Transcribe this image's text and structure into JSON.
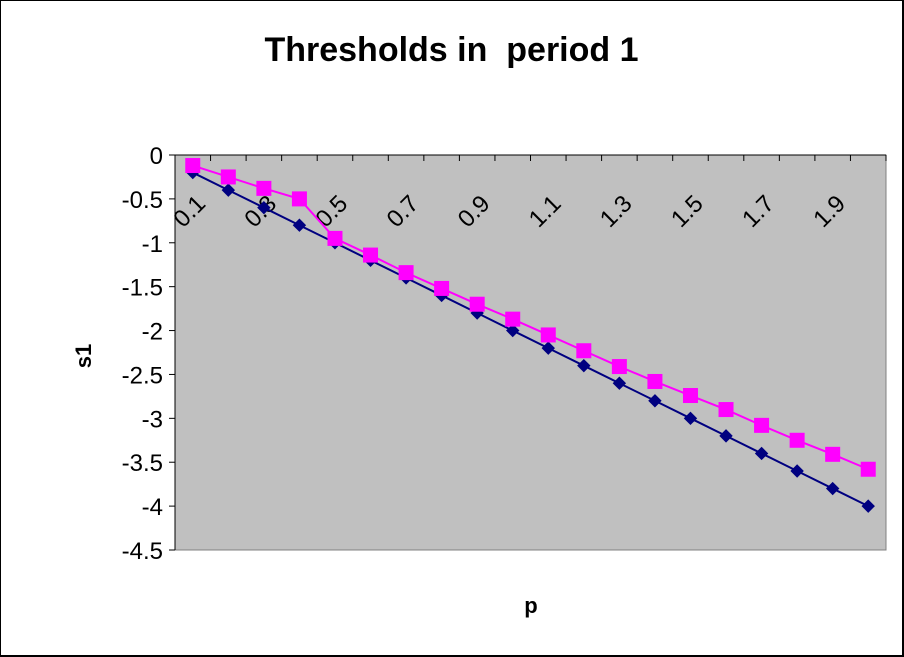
{
  "chart_data": {
    "type": "line",
    "title": "Thresholds in  period 1",
    "xlabel": "p",
    "ylabel": "s1",
    "x": [
      0.1,
      0.2,
      0.3,
      0.4,
      0.5,
      0.6,
      0.7,
      0.8,
      0.9,
      1.0,
      1.1,
      1.2,
      1.3,
      1.4,
      1.5,
      1.6,
      1.7,
      1.8,
      1.9,
      2.0
    ],
    "x_tick_labels": [
      "0.1",
      "0.3",
      "0.5",
      "0.7",
      "0.9",
      "1.1",
      "1.3",
      "1.5",
      "1.7",
      "1.9"
    ],
    "y_ticks": [
      0,
      -0.5,
      -1,
      -1.5,
      -2,
      -2.5,
      -3,
      -3.5,
      -4,
      -4.5
    ],
    "y_tick_labels": [
      "0",
      "-0.5",
      "-1",
      "-1.5",
      "-2",
      "-2.5",
      "-3",
      "-3.5",
      "-4",
      "-4.5"
    ],
    "ylim": [
      -4.5,
      0
    ],
    "grid": false,
    "legend": "none",
    "plot_background": "#c0c0c0",
    "series": [
      {
        "color": "#000080",
        "marker": "diamond",
        "values": [
          -0.2,
          -0.4,
          -0.6,
          -0.8,
          -1.0,
          -1.2,
          -1.4,
          -1.6,
          -1.8,
          -2.0,
          -2.2,
          -2.4,
          -2.6,
          -2.8,
          -3.0,
          -3.2,
          -3.4,
          -3.6,
          -3.8,
          -4.0
        ]
      },
      {
        "color": "#ff00ff",
        "marker": "square",
        "values": [
          -0.12,
          -0.25,
          -0.38,
          -0.5,
          -0.95,
          -1.14,
          -1.34,
          -1.52,
          -1.7,
          -1.87,
          -2.05,
          -2.23,
          -2.41,
          -2.58,
          -2.74,
          -2.9,
          -3.08,
          -3.25,
          -3.41,
          -3.58
        ]
      }
    ]
  }
}
